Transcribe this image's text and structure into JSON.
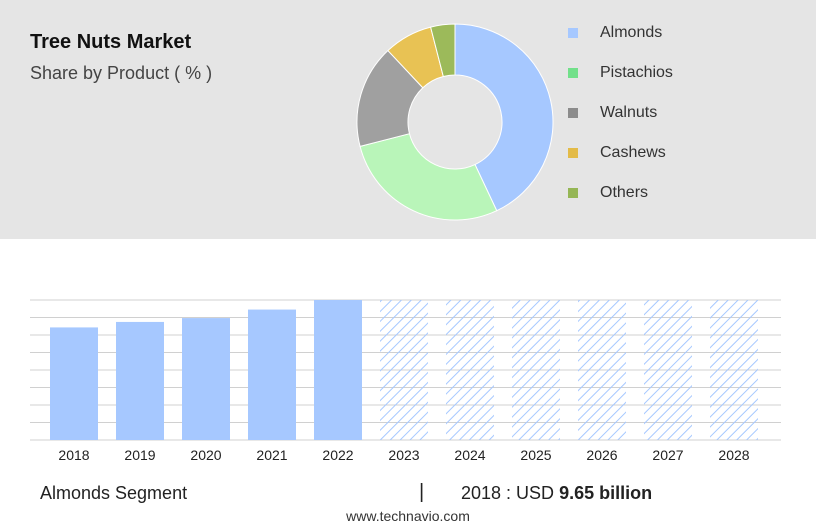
{
  "header": {
    "title": "Tree Nuts Market",
    "subtitle": "Share by Product ( % )"
  },
  "chart_data": [
    {
      "type": "pie",
      "style": "donut",
      "slices": [
        {
          "label": "Almonds",
          "value": 43,
          "color": "#a6c8ff"
        },
        {
          "label": "Pistachios",
          "value": 28,
          "color": "#b9f5b9"
        },
        {
          "label": "Walnuts",
          "value": 17,
          "color": "#a0a0a0"
        },
        {
          "label": "Cashews",
          "value": 8,
          "color": "#e8c254"
        },
        {
          "label": "Others",
          "value": 4,
          "color": "#9cba5a"
        }
      ],
      "legend": {
        "placement": "right",
        "items": [
          {
            "label": "Almonds",
            "color": "#a6c8ff"
          },
          {
            "label": "Pistachios",
            "color": "#72e08a"
          },
          {
            "label": "Walnuts",
            "color": "#8c8c8c"
          },
          {
            "label": "Cashews",
            "color": "#e3bb48"
          },
          {
            "label": "Others",
            "color": "#95b655"
          }
        ]
      }
    },
    {
      "type": "bar",
      "categories": [
        "2018",
        "2019",
        "2020",
        "2021",
        "2022",
        "2023",
        "2024",
        "2025",
        "2026",
        "2027",
        "2028"
      ],
      "values": [
        9.65,
        10.12,
        10.45,
        11.18,
        12.0,
        12.0,
        12.0,
        12.0,
        12.0,
        12.0,
        12.0
      ],
      "forecast_from": "2023",
      "ylim": [
        0,
        12
      ],
      "grid": true,
      "color": "#a6c8ff",
      "forecast_style": "hatched"
    }
  ],
  "footer": {
    "segment_label": "Almonds Segment",
    "separator": "|",
    "stat_prefix": "2018 : USD",
    "stat_value": "9.65 billion",
    "source": "www.technavio.com"
  }
}
